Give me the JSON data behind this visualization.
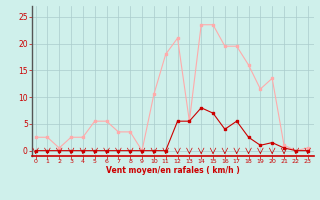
{
  "x": [
    0,
    1,
    2,
    3,
    4,
    5,
    6,
    7,
    8,
    9,
    10,
    11,
    12,
    13,
    14,
    15,
    16,
    17,
    18,
    19,
    20,
    21,
    22,
    23
  ],
  "y_rafales": [
    2.5,
    2.5,
    0.5,
    2.5,
    2.5,
    5.5,
    5.5,
    3.5,
    3.5,
    0,
    10.5,
    18,
    21,
    5.5,
    23.5,
    23.5,
    19.5,
    19.5,
    16,
    11.5,
    13.5,
    1,
    0,
    0.5
  ],
  "y_moyen": [
    0,
    0,
    0,
    0,
    0,
    0,
    0,
    0,
    0,
    0,
    0,
    0,
    5.5,
    5.5,
    8,
    7,
    4,
    5.5,
    2.5,
    1,
    1.5,
    0.5,
    0,
    0
  ],
  "bg_color": "#cff0eb",
  "line_color_rafales": "#ffaaaa",
  "line_color_moyen": "#cc0000",
  "xlabel": "Vent moyen/en rafales ( km/h )",
  "yticks": [
    0,
    5,
    10,
    15,
    20,
    25
  ],
  "xticks": [
    0,
    1,
    2,
    3,
    4,
    5,
    6,
    7,
    8,
    9,
    10,
    11,
    12,
    13,
    14,
    15,
    16,
    17,
    18,
    19,
    20,
    21,
    22,
    23
  ],
  "ylim": [
    -1,
    27
  ],
  "xlim": [
    -0.3,
    23.5
  ],
  "grid_color": "#aacccc",
  "tick_color": "#cc0000",
  "label_color": "#cc0000"
}
